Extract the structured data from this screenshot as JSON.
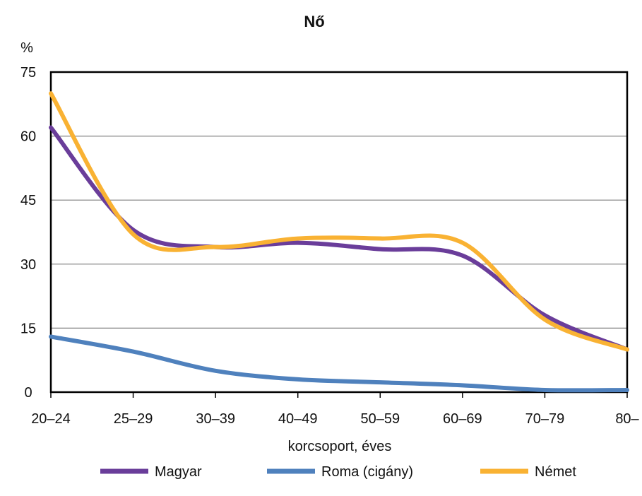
{
  "chart_data": {
    "type": "line",
    "title": "Nő",
    "ylabel": "%",
    "xlabel": "korcsoport, éves",
    "categories": [
      "20–24",
      "25–29",
      "30–39",
      "40–49",
      "50–59",
      "60–69",
      "70–79",
      "80–"
    ],
    "ylim": [
      0,
      75
    ],
    "yticks": [
      0,
      15,
      30,
      45,
      60,
      75
    ],
    "grid": true,
    "legend_position": "bottom",
    "series": [
      {
        "name": "Magyar",
        "color": "#6a3d9a",
        "values": [
          62,
          38,
          34,
          35,
          33.5,
          32,
          18,
          10
        ]
      },
      {
        "name": "Roma (cigány)",
        "color": "#4f81bd",
        "values": [
          13,
          9.5,
          5,
          3,
          2.3,
          1.6,
          0.5,
          0.5
        ]
      },
      {
        "name": "Német",
        "color": "#f9b233",
        "values": [
          70,
          37,
          34,
          36,
          36,
          35,
          17,
          10
        ]
      }
    ]
  }
}
